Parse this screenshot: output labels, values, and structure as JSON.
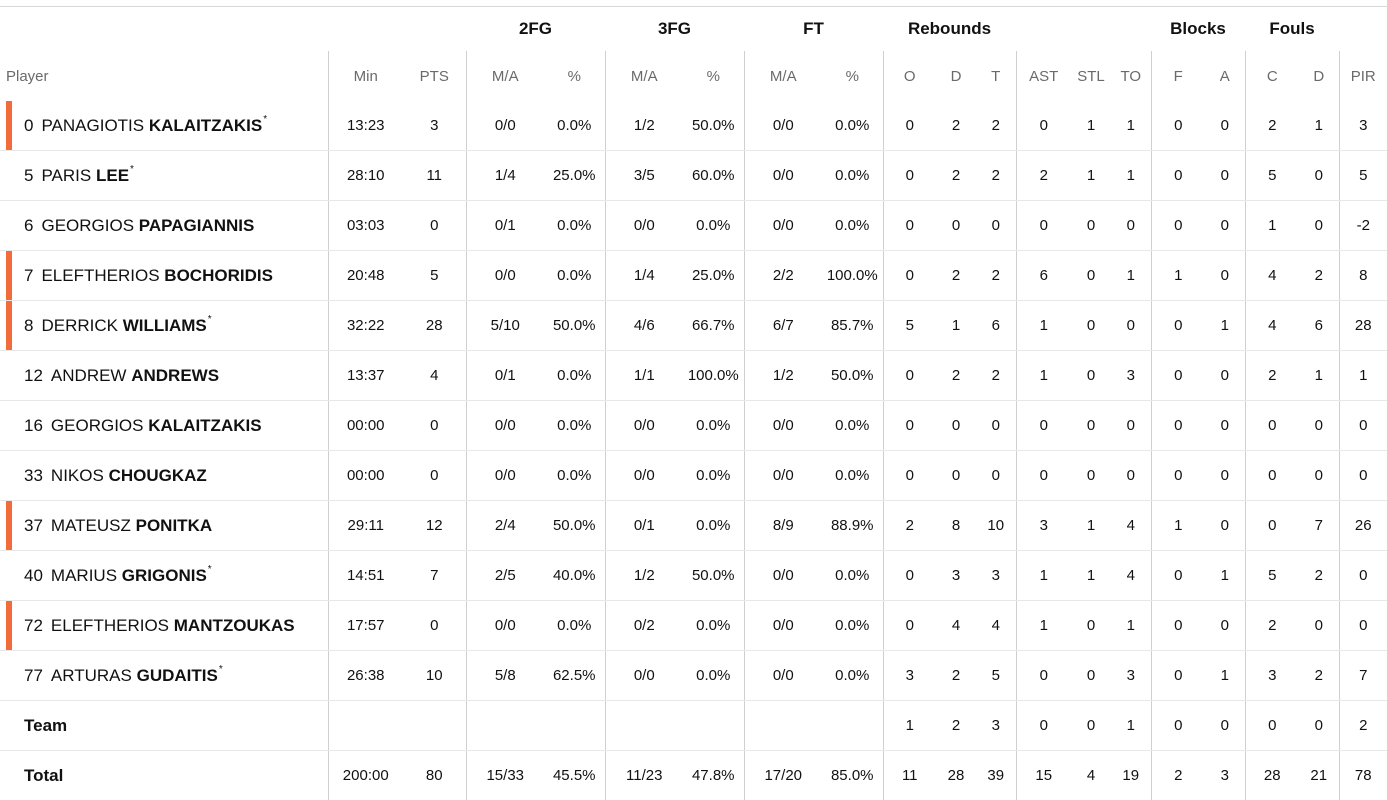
{
  "header_groups": {
    "fg2": "2FG",
    "fg3": "3FG",
    "ft": "FT",
    "rebounds": "Rebounds",
    "blocks": "Blocks",
    "fouls": "Fouls"
  },
  "columns": [
    "Player",
    "Min",
    "PTS",
    "M/A",
    "%",
    "M/A",
    "%",
    "M/A",
    "%",
    "O",
    "D",
    "T",
    "AST",
    "STL",
    "TO",
    "F",
    "A",
    "C",
    "D",
    "PIR"
  ],
  "colors": {
    "starter_marker": "#f26b3a",
    "border": "#d0d0d0",
    "row_divider": "#e8e8e8"
  },
  "players": [
    {
      "number": "0",
      "first": "PANAGIOTIS",
      "last": "KALAITZAKIS",
      "star": "*",
      "marked": true,
      "stats": [
        "13:23",
        "3",
        "0/0",
        "0.0%",
        "1/2",
        "50.0%",
        "0/0",
        "0.0%",
        "0",
        "2",
        "2",
        "0",
        "1",
        "1",
        "0",
        "0",
        "2",
        "1",
        "3"
      ]
    },
    {
      "number": "5",
      "first": "PARIS",
      "last": "LEE",
      "star": "*",
      "marked": false,
      "stats": [
        "28:10",
        "11",
        "1/4",
        "25.0%",
        "3/5",
        "60.0%",
        "0/0",
        "0.0%",
        "0",
        "2",
        "2",
        "2",
        "1",
        "1",
        "0",
        "0",
        "5",
        "0",
        "5"
      ]
    },
    {
      "number": "6",
      "first": "GEORGIOS",
      "last": "PAPAGIANNIS",
      "star": "",
      "marked": false,
      "stats": [
        "03:03",
        "0",
        "0/1",
        "0.0%",
        "0/0",
        "0.0%",
        "0/0",
        "0.0%",
        "0",
        "0",
        "0",
        "0",
        "0",
        "0",
        "0",
        "0",
        "1",
        "0",
        "-2"
      ]
    },
    {
      "number": "7",
      "first": "ELEFTHERIOS",
      "last": "BOCHORIDIS",
      "star": "",
      "marked": true,
      "stats": [
        "20:48",
        "5",
        "0/0",
        "0.0%",
        "1/4",
        "25.0%",
        "2/2",
        "100.0%",
        "0",
        "2",
        "2",
        "6",
        "0",
        "1",
        "1",
        "0",
        "4",
        "2",
        "8"
      ]
    },
    {
      "number": "8",
      "first": "DERRICK",
      "last": "WILLIAMS",
      "star": "*",
      "marked": true,
      "stats": [
        "32:22",
        "28",
        "5/10",
        "50.0%",
        "4/6",
        "66.7%",
        "6/7",
        "85.7%",
        "5",
        "1",
        "6",
        "1",
        "0",
        "0",
        "0",
        "1",
        "4",
        "6",
        "28"
      ]
    },
    {
      "number": "12",
      "first": "ANDREW",
      "last": "ANDREWS",
      "star": "",
      "marked": false,
      "stats": [
        "13:37",
        "4",
        "0/1",
        "0.0%",
        "1/1",
        "100.0%",
        "1/2",
        "50.0%",
        "0",
        "2",
        "2",
        "1",
        "0",
        "3",
        "0",
        "0",
        "2",
        "1",
        "1"
      ]
    },
    {
      "number": "16",
      "first": "GEORGIOS",
      "last": "KALAITZAKIS",
      "star": "",
      "marked": false,
      "stats": [
        "00:00",
        "0",
        "0/0",
        "0.0%",
        "0/0",
        "0.0%",
        "0/0",
        "0.0%",
        "0",
        "0",
        "0",
        "0",
        "0",
        "0",
        "0",
        "0",
        "0",
        "0",
        "0"
      ]
    },
    {
      "number": "33",
      "first": "NIKOS",
      "last": "CHOUGKAZ",
      "star": "",
      "marked": false,
      "stats": [
        "00:00",
        "0",
        "0/0",
        "0.0%",
        "0/0",
        "0.0%",
        "0/0",
        "0.0%",
        "0",
        "0",
        "0",
        "0",
        "0",
        "0",
        "0",
        "0",
        "0",
        "0",
        "0"
      ]
    },
    {
      "number": "37",
      "first": "MATEUSZ",
      "last": "PONITKA",
      "star": "",
      "marked": true,
      "stats": [
        "29:11",
        "12",
        "2/4",
        "50.0%",
        "0/1",
        "0.0%",
        "8/9",
        "88.9%",
        "2",
        "8",
        "10",
        "3",
        "1",
        "4",
        "1",
        "0",
        "0",
        "7",
        "26"
      ]
    },
    {
      "number": "40",
      "first": "MARIUS",
      "last": "GRIGONIS",
      "star": "*",
      "marked": false,
      "stats": [
        "14:51",
        "7",
        "2/5",
        "40.0%",
        "1/2",
        "50.0%",
        "0/0",
        "0.0%",
        "0",
        "3",
        "3",
        "1",
        "1",
        "4",
        "0",
        "1",
        "5",
        "2",
        "0"
      ]
    },
    {
      "number": "72",
      "first": "ELEFTHERIOS",
      "last": "MANTZOUKAS",
      "star": "",
      "marked": true,
      "stats": [
        "17:57",
        "0",
        "0/0",
        "0.0%",
        "0/2",
        "0.0%",
        "0/0",
        "0.0%",
        "0",
        "4",
        "4",
        "1",
        "0",
        "1",
        "0",
        "0",
        "2",
        "0",
        "0"
      ]
    },
    {
      "number": "77",
      "first": "ARTURAS",
      "last": "GUDAITIS",
      "star": "*",
      "marked": false,
      "stats": [
        "26:38",
        "10",
        "5/8",
        "62.5%",
        "0/0",
        "0.0%",
        "0/0",
        "0.0%",
        "3",
        "2",
        "5",
        "0",
        "0",
        "3",
        "0",
        "1",
        "3",
        "2",
        "7"
      ]
    }
  ],
  "team": {
    "label": "Team",
    "stats": [
      "",
      "",
      "",
      "",
      "",
      "",
      "",
      "",
      "1",
      "2",
      "3",
      "0",
      "0",
      "1",
      "0",
      "0",
      "0",
      "0",
      "2"
    ]
  },
  "total": {
    "label": "Total",
    "stats": [
      "200:00",
      "80",
      "15/33",
      "45.5%",
      "11/23",
      "47.8%",
      "17/20",
      "85.0%",
      "11",
      "28",
      "39",
      "15",
      "4",
      "19",
      "2",
      "3",
      "28",
      "21",
      "78"
    ]
  }
}
